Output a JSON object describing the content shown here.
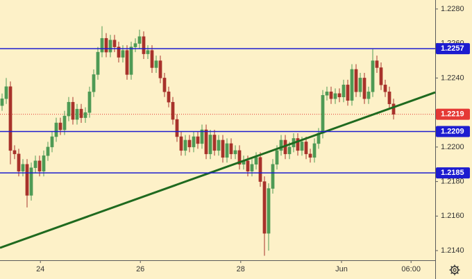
{
  "chart_data": {
    "type": "candlestick",
    "up_color": "#4e9a55",
    "down_color": "#a8322b",
    "ohlc": [
      [
        1.2224,
        1.2231,
        1.2221,
        1.2228
      ],
      [
        1.2228,
        1.224,
        1.2225,
        1.2235
      ],
      [
        1.2235,
        1.2238,
        1.219,
        1.2198
      ],
      [
        1.2198,
        1.2201,
        1.2193,
        1.2196
      ],
      [
        1.2196,
        1.2199,
        1.2183,
        1.2186
      ],
      [
        1.2186,
        1.2193,
        1.2183,
        1.219
      ],
      [
        1.219,
        1.2193,
        1.2165,
        1.2172
      ],
      [
        1.2172,
        1.2191,
        1.2169,
        1.2188
      ],
      [
        1.2188,
        1.2195,
        1.2185,
        1.2192
      ],
      [
        1.2192,
        1.2195,
        1.2183,
        1.2186
      ],
      [
        1.2186,
        1.2198,
        1.2183,
        1.2195
      ],
      [
        1.2195,
        1.2203,
        1.2192,
        1.22
      ],
      [
        1.22,
        1.2209,
        1.2197,
        1.2206
      ],
      [
        1.2206,
        1.2217,
        1.2203,
        1.2214
      ],
      [
        1.2214,
        1.2217,
        1.2207,
        1.221
      ],
      [
        1.221,
        1.2221,
        1.2207,
        1.2218
      ],
      [
        1.2218,
        1.2229,
        1.2215,
        1.2226
      ],
      [
        1.2226,
        1.2229,
        1.2213,
        1.2216
      ],
      [
        1.2216,
        1.2225,
        1.2213,
        1.2222
      ],
      [
        1.2222,
        1.2225,
        1.2214,
        1.2217
      ],
      [
        1.2217,
        1.2223,
        1.2214,
        1.222
      ],
      [
        1.222,
        1.2235,
        1.2217,
        1.2232
      ],
      [
        1.2232,
        1.2245,
        1.2229,
        1.2242
      ],
      [
        1.2242,
        1.2258,
        1.2239,
        1.2255
      ],
      [
        1.2255,
        1.227,
        1.2252,
        1.2263
      ],
      [
        1.2263,
        1.2266,
        1.2252,
        1.2255
      ],
      [
        1.2255,
        1.2265,
        1.2252,
        1.2262
      ],
      [
        1.2262,
        1.2265,
        1.2255,
        1.2258
      ],
      [
        1.2258,
        1.2261,
        1.2249,
        1.2252
      ],
      [
        1.2252,
        1.2259,
        1.2249,
        1.2256
      ],
      [
        1.2256,
        1.2259,
        1.2239,
        1.2242
      ],
      [
        1.2242,
        1.2261,
        1.2239,
        1.2258
      ],
      [
        1.2258,
        1.2263,
        1.2255,
        1.226
      ],
      [
        1.226,
        1.2268,
        1.2257,
        1.2264
      ],
      [
        1.2264,
        1.2267,
        1.2251,
        1.2254
      ],
      [
        1.2254,
        1.2259,
        1.2251,
        1.2256
      ],
      [
        1.2256,
        1.2259,
        1.2243,
        1.2246
      ],
      [
        1.2246,
        1.2253,
        1.2243,
        1.225
      ],
      [
        1.225,
        1.2253,
        1.2237,
        1.224
      ],
      [
        1.224,
        1.2243,
        1.2229,
        1.2232
      ],
      [
        1.2232,
        1.2235,
        1.2223,
        1.2226
      ],
      [
        1.2226,
        1.2229,
        1.2213,
        1.2216
      ],
      [
        1.2216,
        1.2219,
        1.2203,
        1.2206
      ],
      [
        1.2206,
        1.2209,
        1.2195,
        1.2198
      ],
      [
        1.2198,
        1.2207,
        1.2195,
        1.2204
      ],
      [
        1.2204,
        1.2207,
        1.2197,
        1.22
      ],
      [
        1.22,
        1.2209,
        1.2197,
        1.2206
      ],
      [
        1.2206,
        1.2209,
        1.2199,
        1.2202
      ],
      [
        1.2202,
        1.2213,
        1.2199,
        1.221
      ],
      [
        1.221,
        1.2213,
        1.2193,
        1.2196
      ],
      [
        1.2196,
        1.221,
        1.2193,
        1.2207
      ],
      [
        1.2207,
        1.221,
        1.2195,
        1.2198
      ],
      [
        1.2198,
        1.2207,
        1.2195,
        1.2204
      ],
      [
        1.2204,
        1.2207,
        1.2191,
        1.2194
      ],
      [
        1.2194,
        1.2205,
        1.2191,
        1.2202
      ],
      [
        1.2202,
        1.2205,
        1.2193,
        1.2196
      ],
      [
        1.2196,
        1.2201,
        1.2193,
        1.2198
      ],
      [
        1.2198,
        1.2201,
        1.2187,
        1.219
      ],
      [
        1.219,
        1.2195,
        1.2187,
        1.2192
      ],
      [
        1.2192,
        1.2195,
        1.2183,
        1.2186
      ],
      [
        1.2186,
        1.2193,
        1.2183,
        1.219
      ],
      [
        1.219,
        1.2197,
        1.2187,
        1.2194
      ],
      [
        1.2194,
        1.2197,
        1.2177,
        1.218
      ],
      [
        1.218,
        1.2183,
        1.2137,
        1.215
      ],
      [
        1.215,
        1.2179,
        1.214,
        1.2176
      ],
      [
        1.2176,
        1.2193,
        1.2173,
        1.219
      ],
      [
        1.219,
        1.2201,
        1.2187,
        1.2198
      ],
      [
        1.2198,
        1.2207,
        1.2195,
        1.2204
      ],
      [
        1.2204,
        1.2207,
        1.2193,
        1.2196
      ],
      [
        1.2196,
        1.2203,
        1.2193,
        1.22
      ],
      [
        1.22,
        1.2208,
        1.2197,
        1.2205
      ],
      [
        1.2205,
        1.2208,
        1.2195,
        1.2198
      ],
      [
        1.2198,
        1.2206,
        1.2195,
        1.2203
      ],
      [
        1.2203,
        1.2206,
        1.2193,
        1.2196
      ],
      [
        1.2196,
        1.2199,
        1.2191,
        1.2194
      ],
      [
        1.2194,
        1.2205,
        1.2191,
        1.2202
      ],
      [
        1.2202,
        1.2211,
        1.2199,
        1.2208
      ],
      [
        1.2208,
        1.2233,
        1.2205,
        1.223
      ],
      [
        1.223,
        1.2235,
        1.2227,
        1.2232
      ],
      [
        1.2232,
        1.2235,
        1.2225,
        1.2228
      ],
      [
        1.2228,
        1.2234,
        1.2225,
        1.2231
      ],
      [
        1.2231,
        1.2234,
        1.2226,
        1.2229
      ],
      [
        1.2229,
        1.2239,
        1.2226,
        1.2236
      ],
      [
        1.2236,
        1.2239,
        1.2224,
        1.2227
      ],
      [
        1.2227,
        1.2248,
        1.2224,
        1.2245
      ],
      [
        1.2245,
        1.2248,
        1.2229,
        1.2232
      ],
      [
        1.2232,
        1.2243,
        1.2229,
        1.224
      ],
      [
        1.224,
        1.2243,
        1.2225,
        1.2228
      ],
      [
        1.2228,
        1.2235,
        1.2225,
        1.2232
      ],
      [
        1.2232,
        1.2257,
        1.2229,
        1.225
      ],
      [
        1.225,
        1.2253,
        1.2243,
        1.2246
      ],
      [
        1.2246,
        1.2249,
        1.2233,
        1.2236
      ],
      [
        1.2236,
        1.2239,
        1.2229,
        1.2232
      ],
      [
        1.2232,
        1.2235,
        1.2222,
        1.2225
      ],
      [
        1.2225,
        1.2228,
        1.2216,
        1.2219
      ]
    ],
    "xlim": [
      -0.5,
      104
    ],
    "xticks": [
      {
        "value": 9.2,
        "label": "24"
      },
      {
        "value": 33.2,
        "label": "26"
      },
      {
        "value": 57.3,
        "label": "28"
      },
      {
        "value": 81.5,
        "label": "Jun"
      },
      {
        "value": 98.2,
        "label": "06:00"
      }
    ],
    "ylim": [
      1.21344,
      1.22852
    ],
    "yticks": [
      {
        "value": 1.214,
        "label": "1.2140"
      },
      {
        "value": 1.216,
        "label": "1.2160"
      },
      {
        "value": 1.218,
        "label": "1.2180"
      },
      {
        "value": 1.22,
        "label": "1.2200"
      },
      {
        "value": 1.222,
        "label": "1.2220"
      },
      {
        "value": 1.224,
        "label": "1.2240"
      },
      {
        "value": 1.226,
        "label": "1.2260"
      },
      {
        "value": 1.228,
        "label": "1.2280"
      }
    ],
    "levels": [
      {
        "value": 1.2257,
        "label": "1.2257"
      },
      {
        "value": 1.2209,
        "label": "1.2209"
      },
      {
        "value": 1.2185,
        "label": "1.2185"
      }
    ],
    "level_color": "#1c1cd0",
    "last_price": {
      "value": 1.2219,
      "label": "1.2219"
    },
    "last_price_color": "#e53935",
    "trendline": {
      "x": [
        -0.5,
        104
      ],
      "values": [
        1.21416,
        1.22317
      ],
      "color": "#1f6a1f"
    }
  }
}
